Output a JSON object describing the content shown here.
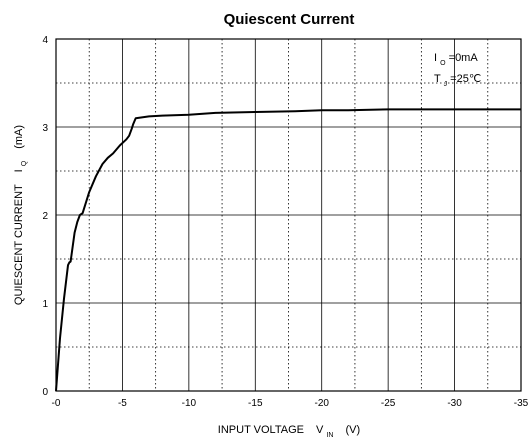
{
  "chart_data": {
    "type": "line",
    "title": "Quiescent Current",
    "xlabel": {
      "main": "INPUT VOLTAGE",
      "symbol": "V",
      "subscript": "IN",
      "unit": "(V)"
    },
    "ylabel": {
      "main": "QUIESCENT CURRENT",
      "symbol": "I",
      "subscript": "Q",
      "unit": "(mA)"
    },
    "x_ticks": [
      "-0",
      "-5",
      "-10",
      "-15",
      "-20",
      "-25",
      "-30",
      "-35"
    ],
    "y_ticks": [
      "0",
      "1",
      "2",
      "3",
      "4"
    ],
    "xlim": [
      0,
      -35
    ],
    "ylim": [
      0,
      4
    ],
    "grid": true,
    "annotations": [
      {
        "symbol": "I",
        "subscript": "O",
        "text": "=0mA"
      },
      {
        "symbol": "T",
        "subscript": "J",
        "text": "=25℃"
      }
    ],
    "series": [
      {
        "color": "#000000",
        "x": [
          0,
          -0.3,
          -0.6,
          -0.9,
          -1.0,
          -1.1,
          -1.4,
          -1.6,
          -1.8,
          -2.0,
          -2.5,
          -3.0,
          -3.5,
          -3.9,
          -4.3,
          -4.8,
          -5.3,
          -5.5,
          -5.7,
          -5.8,
          -6.0,
          -7,
          -8,
          -10,
          -12,
          -15,
          -18,
          -20,
          -22,
          -25,
          -28,
          -30,
          -32,
          -35
        ],
        "y": [
          0,
          0.6,
          1.05,
          1.43,
          1.46,
          1.47,
          1.8,
          1.92,
          2.0,
          2.02,
          2.26,
          2.44,
          2.58,
          2.65,
          2.7,
          2.79,
          2.86,
          2.9,
          2.98,
          3.03,
          3.1,
          3.12,
          3.13,
          3.14,
          3.16,
          3.17,
          3.18,
          3.19,
          3.19,
          3.2,
          3.2,
          3.2,
          3.2,
          3.2
        ]
      }
    ]
  }
}
